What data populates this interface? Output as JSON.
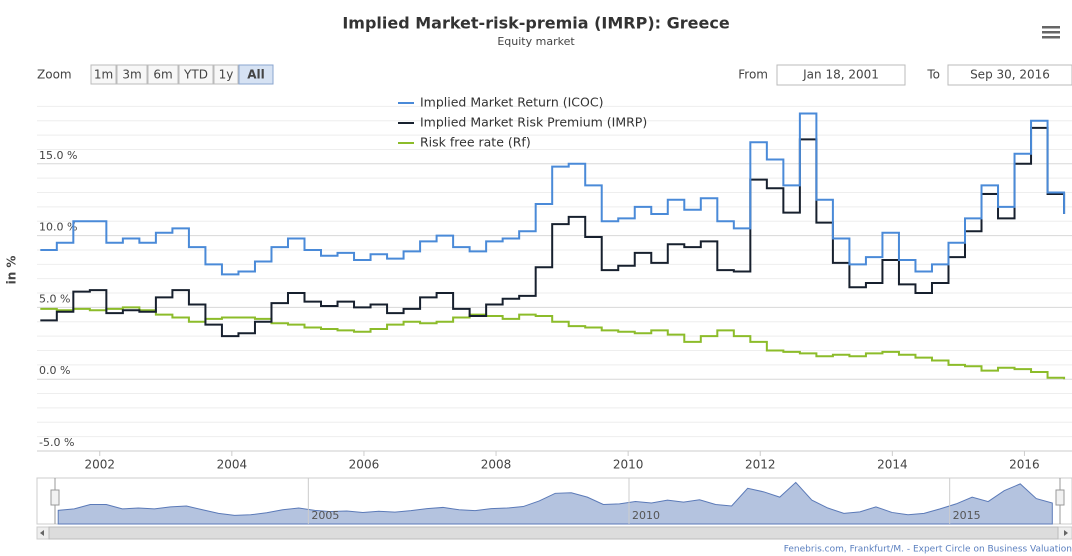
{
  "chart_data": {
    "type": "line",
    "step": true,
    "title": "Implied Market-risk-premia (IMRP): Greece",
    "subtitle": "Equity market",
    "ylabel": "in %",
    "zoom": {
      "label": "Zoom",
      "buttons": [
        "1m",
        "3m",
        "6m",
        "YTD",
        "1y",
        "All"
      ],
      "selected": 5
    },
    "range": {
      "from_label": "From",
      "from": "Jan 18, 2001",
      "to_label": "To",
      "to": "Sep 30, 2016"
    },
    "credits": "Fenebris.com, Frankfurt/M. - Expert Circle on Business Valuation",
    "legend": "top",
    "grid": true,
    "xlim": [
      2001.05,
      2016.72
    ],
    "xticks": [
      2002,
      2004,
      2006,
      2008,
      2010,
      2012,
      2014,
      2016
    ],
    "ylim": [
      -5,
      20
    ],
    "yticks": [
      {
        "value": -5,
        "label": "-5.0 %"
      },
      {
        "value": 0,
        "label": "0.0 %"
      },
      {
        "value": 5,
        "label": "5.0 %"
      },
      {
        "value": 10,
        "label": "10.0 %"
      },
      {
        "value": 15,
        "label": "15.0 %"
      }
    ],
    "y_minor_ticks": [
      -4,
      -3,
      -2,
      -1,
      1,
      2,
      3,
      4,
      6,
      7,
      8,
      9,
      11,
      12,
      13,
      14,
      16,
      17,
      18,
      19
    ],
    "navigator": {
      "xticks": [
        2005,
        2010,
        2015
      ]
    },
    "x": [
      2001.1,
      2001.35,
      2001.6,
      2001.85,
      2002.1,
      2002.35,
      2002.6,
      2002.85,
      2003.1,
      2003.35,
      2003.6,
      2003.85,
      2004.1,
      2004.35,
      2004.6,
      2004.85,
      2005.1,
      2005.35,
      2005.6,
      2005.85,
      2006.1,
      2006.35,
      2006.6,
      2006.85,
      2007.1,
      2007.35,
      2007.6,
      2007.85,
      2008.1,
      2008.35,
      2008.6,
      2008.85,
      2009.1,
      2009.35,
      2009.6,
      2009.85,
      2010.1,
      2010.35,
      2010.6,
      2010.85,
      2011.1,
      2011.35,
      2011.6,
      2011.85,
      2012.1,
      2012.35,
      2012.6,
      2012.85,
      2013.1,
      2013.35,
      2013.6,
      2013.85,
      2014.1,
      2014.35,
      2014.6,
      2014.85,
      2015.1,
      2015.35,
      2015.6,
      2015.85,
      2016.1,
      2016.35,
      2016.6
    ],
    "series": [
      {
        "name": "Implied Market Return (ICOC)",
        "color": "#4a8ad8",
        "values": [
          9.0,
          9.5,
          11.0,
          11.0,
          9.5,
          9.8,
          9.5,
          10.2,
          10.5,
          9.2,
          8.0,
          7.3,
          7.5,
          8.2,
          9.2,
          9.8,
          9.0,
          8.6,
          8.8,
          8.3,
          8.7,
          8.4,
          8.9,
          9.6,
          10.0,
          9.2,
          8.9,
          9.6,
          9.8,
          10.3,
          12.2,
          14.8,
          15.0,
          13.5,
          11.0,
          11.2,
          12.0,
          11.5,
          12.5,
          11.8,
          12.6,
          11.0,
          10.5,
          16.5,
          15.3,
          13.5,
          18.5,
          12.5,
          9.8,
          8.0,
          8.5,
          10.2,
          8.3,
          7.5,
          8.0,
          9.5,
          11.2,
          13.5,
          12.0,
          15.7,
          18.0,
          13.0,
          11.5
        ]
      },
      {
        "name": "Implied Market Risk Premium (IMRP)",
        "color": "#17202e",
        "values": [
          4.1,
          4.7,
          6.1,
          6.2,
          4.6,
          4.8,
          4.7,
          5.7,
          6.2,
          5.2,
          3.8,
          3.0,
          3.2,
          4.0,
          5.3,
          6.0,
          5.4,
          5.1,
          5.4,
          5.0,
          5.2,
          4.6,
          4.9,
          5.7,
          6.0,
          4.9,
          4.4,
          5.2,
          5.6,
          5.8,
          7.8,
          10.8,
          11.3,
          9.9,
          7.6,
          7.9,
          8.8,
          8.1,
          9.4,
          9.2,
          9.6,
          7.6,
          7.5,
          13.9,
          13.3,
          11.6,
          16.7,
          10.9,
          8.1,
          6.4,
          6.7,
          8.3,
          6.6,
          6.0,
          6.7,
          8.5,
          10.3,
          12.9,
          11.2,
          15.0,
          17.5,
          12.9,
          11.5
        ]
      },
      {
        "name": "Risk free rate (Rf)",
        "color": "#8cbc2a",
        "values": [
          4.9,
          4.8,
          4.9,
          4.8,
          4.9,
          5.0,
          4.8,
          4.5,
          4.3,
          4.0,
          4.2,
          4.3,
          4.3,
          4.2,
          3.9,
          3.8,
          3.6,
          3.5,
          3.4,
          3.3,
          3.5,
          3.8,
          4.0,
          3.9,
          4.0,
          4.3,
          4.5,
          4.4,
          4.2,
          4.5,
          4.4,
          4.0,
          3.7,
          3.6,
          3.4,
          3.3,
          3.2,
          3.4,
          3.1,
          2.6,
          3.0,
          3.4,
          3.0,
          2.6,
          2.0,
          1.9,
          1.8,
          1.6,
          1.7,
          1.6,
          1.8,
          1.9,
          1.7,
          1.5,
          1.3,
          1.0,
          0.9,
          0.6,
          0.8,
          0.7,
          0.5,
          0.1,
          0.0
        ]
      }
    ]
  }
}
